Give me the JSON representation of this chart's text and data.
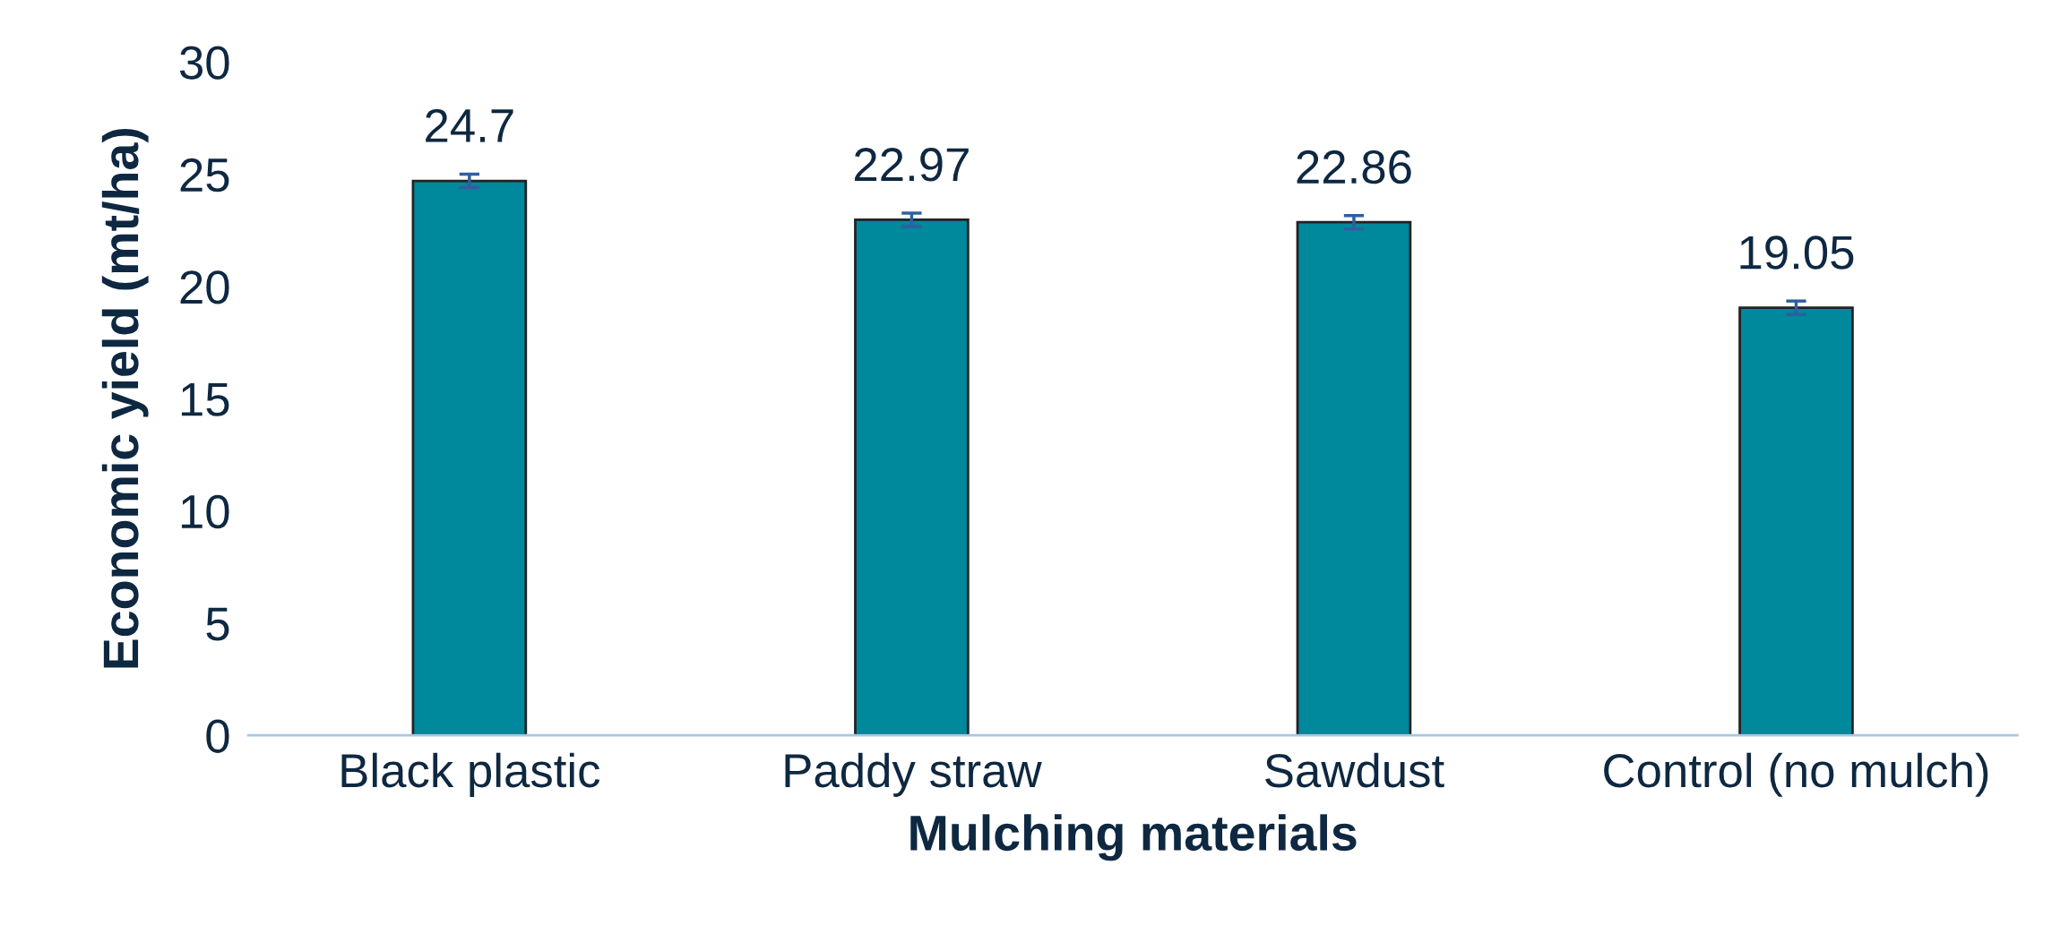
{
  "chart_data": {
    "type": "bar",
    "xlabel": "Mulching materials",
    "ylabel": "Economic yield (mt/ha)",
    "categories": [
      "Black plastic",
      "Paddy straw",
      "Sawdust",
      "Control (no mulch)"
    ],
    "values": [
      24.7,
      22.97,
      22.86,
      19.05
    ],
    "errors": [
      0.3,
      0.3,
      0.3,
      0.3
    ],
    "color": "#00889c",
    "ylim": [
      0,
      30
    ],
    "yticks": [
      0,
      5,
      10,
      15,
      20,
      25,
      30
    ],
    "grid": false,
    "data_labels": true
  }
}
